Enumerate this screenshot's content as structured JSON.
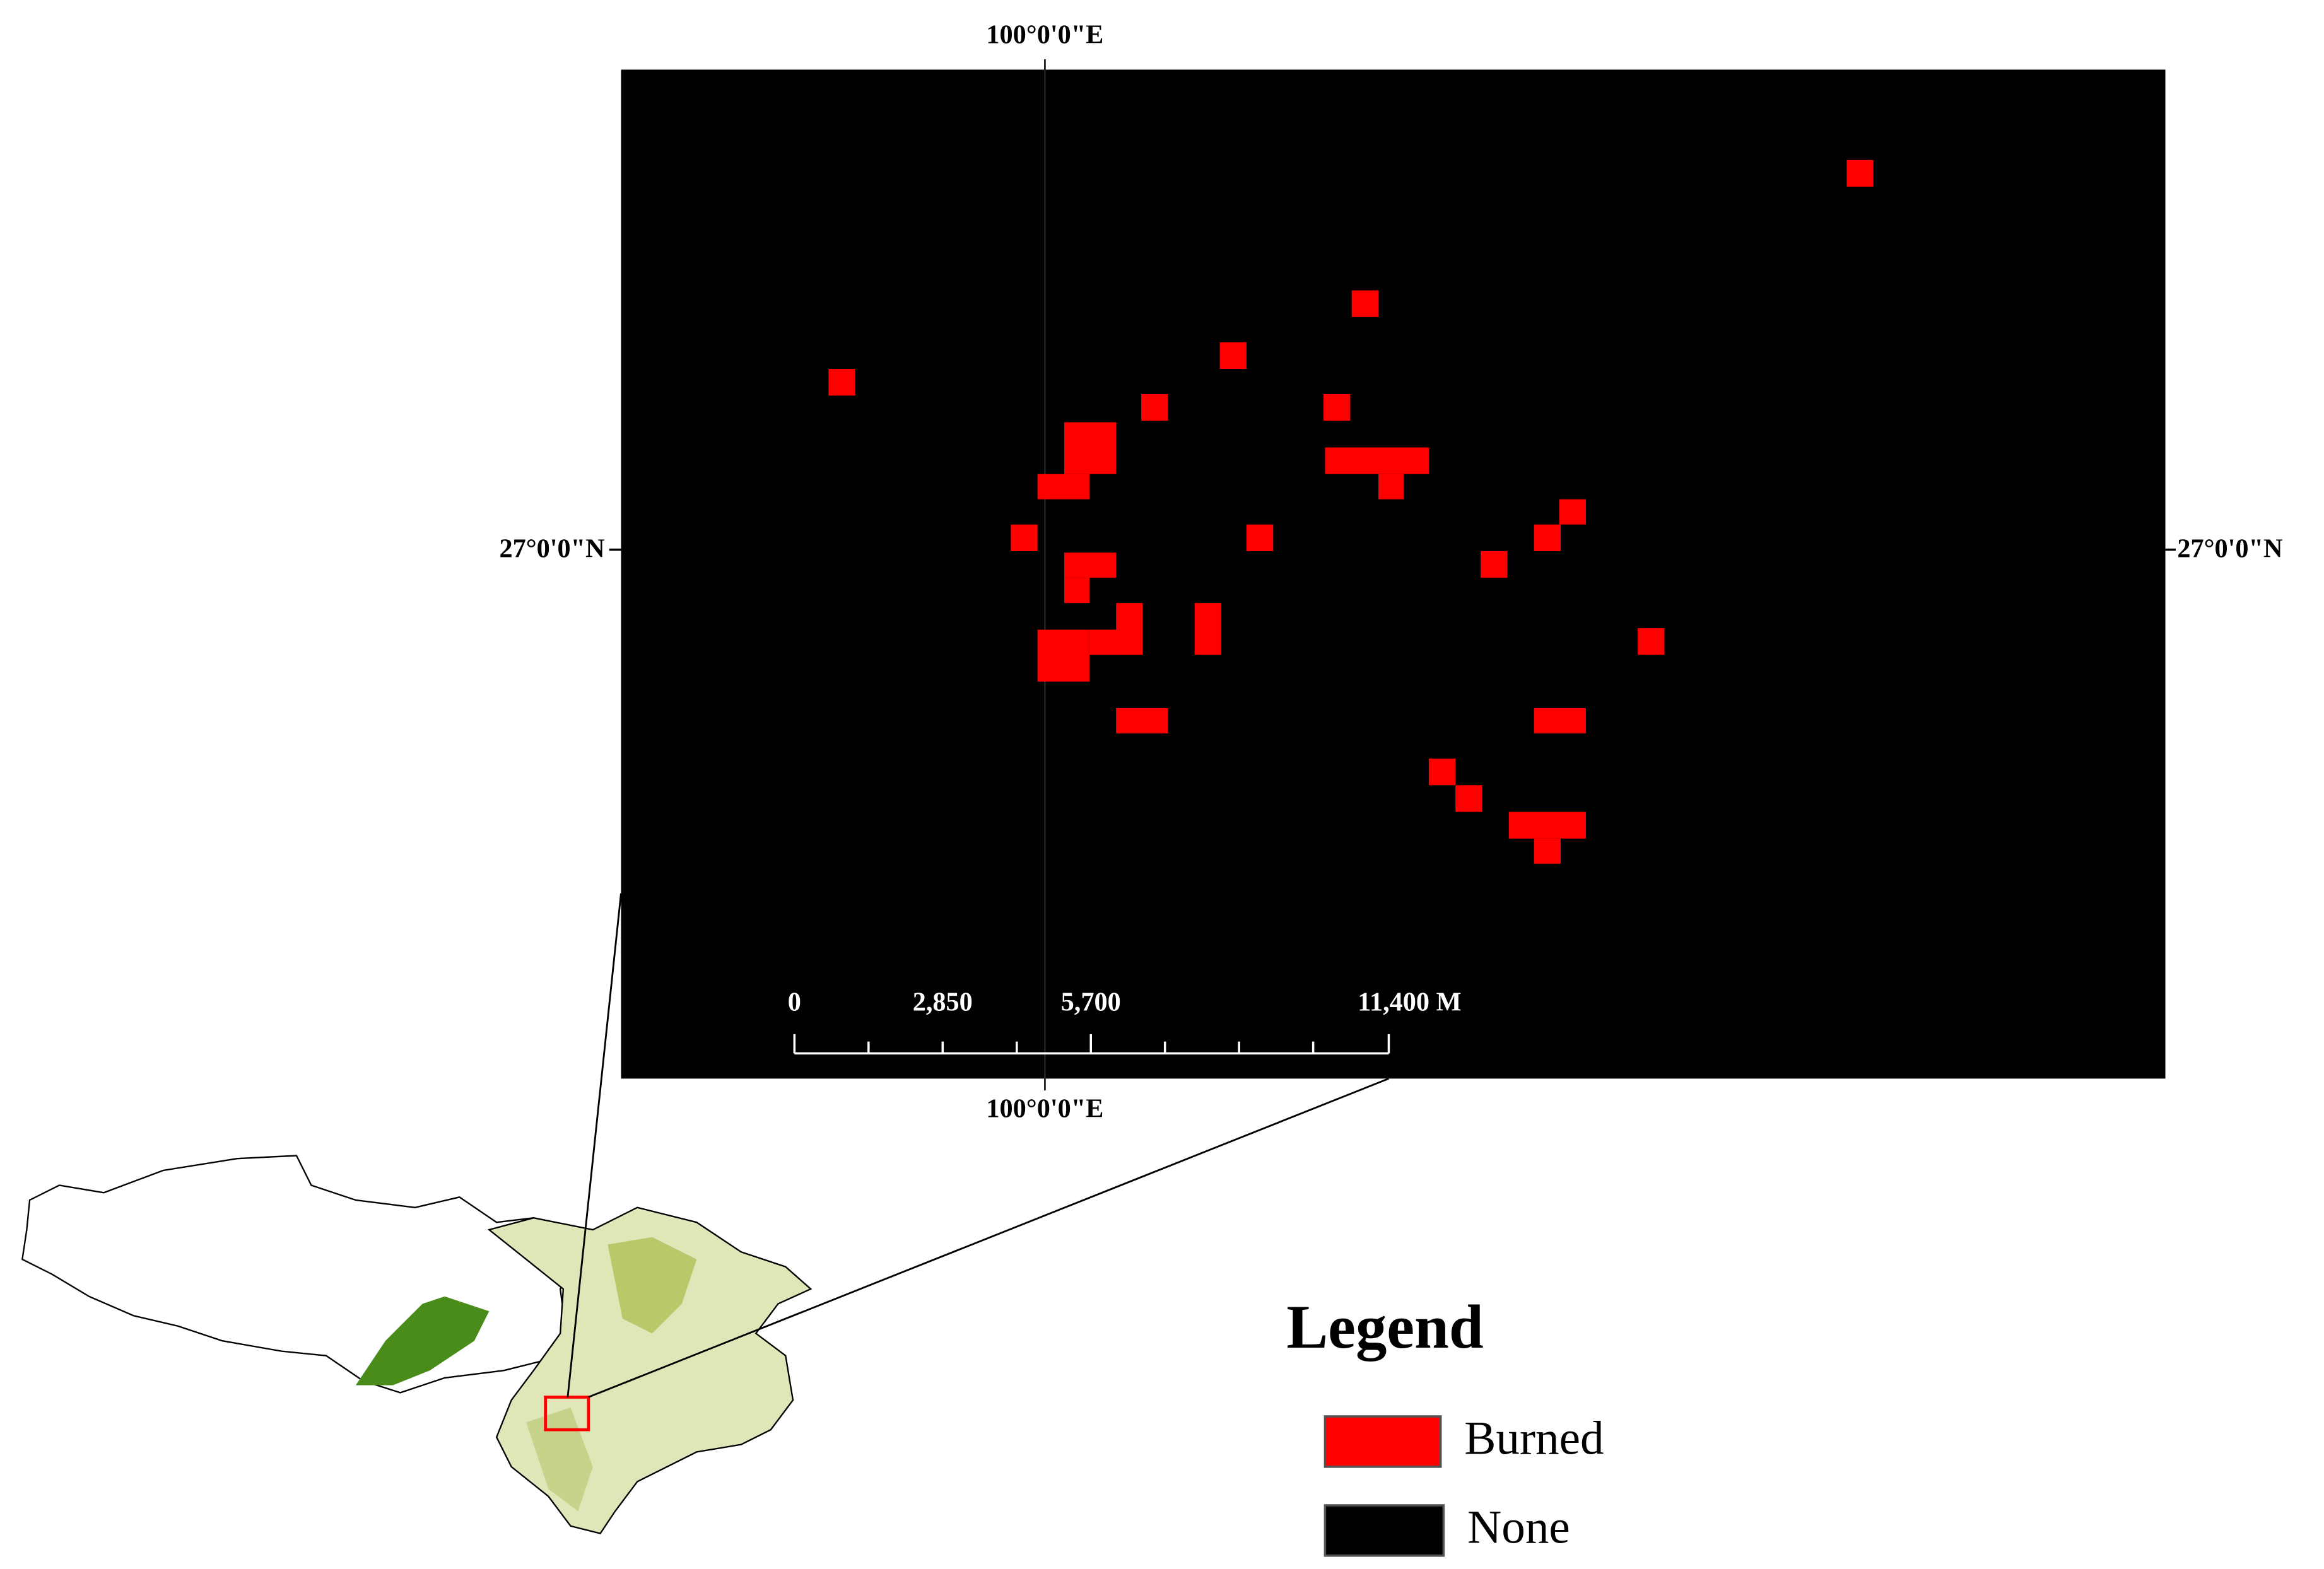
{
  "map": {
    "graticule": {
      "top_longitude": "100°0'0\"E",
      "bottom_longitude": "100°0'0\"E",
      "left_latitude": "27°0'0\"N",
      "right_latitude": "27°0'0\"N"
    },
    "scale_bar": {
      "labels": [
        "0",
        "2,850",
        "5,700",
        "11,400 M"
      ]
    },
    "legend": {
      "title": "Legend",
      "items": [
        {
          "label": "Burned"
        },
        {
          "label": "None"
        }
      ]
    }
  }
}
